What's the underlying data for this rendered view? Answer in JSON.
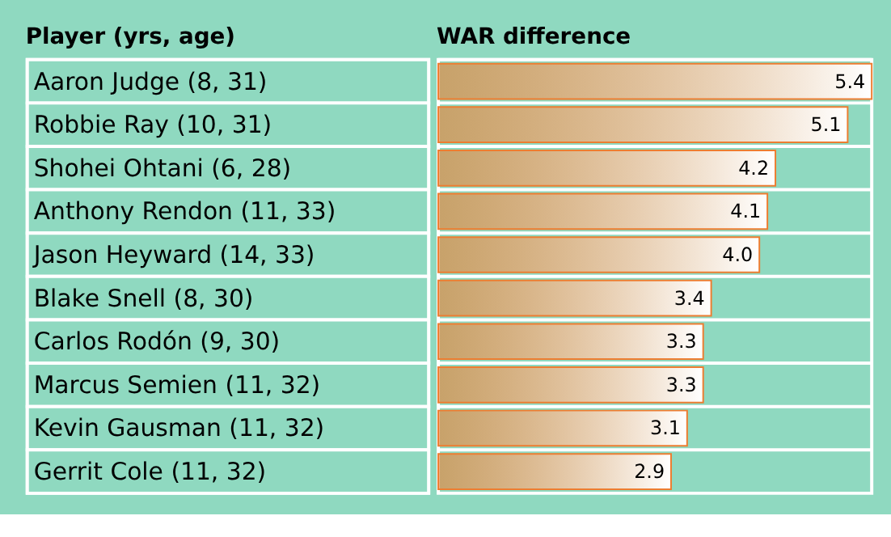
{
  "chart_data": {
    "type": "bar",
    "orientation": "horizontal",
    "ylabel": "Player (yrs, age)",
    "xlabel": "WAR difference",
    "categories": [
      "Aaron Judge (8, 31)",
      "Robbie Ray (10, 31)",
      "Shohei Ohtani (6, 28)",
      "Anthony Rendon (11, 33)",
      "Jason Heyward (14, 33)",
      "Blake Snell (8, 30)",
      "Carlos Rodón (9, 30)",
      "Marcus Semien (11, 32)",
      "Kevin Gausman (11, 32)",
      "Gerrit Cole (11, 32)"
    ],
    "values": [
      5.4,
      5.1,
      4.2,
      4.1,
      4.0,
      3.4,
      3.3,
      3.3,
      3.1,
      2.9
    ],
    "color": "#ed7d31",
    "value_labels": [
      "5.4",
      "5.1",
      "4.2",
      "4.1",
      "4.0",
      "3.4",
      "3.3",
      "3.3",
      "3.1",
      "2.9"
    ]
  }
}
